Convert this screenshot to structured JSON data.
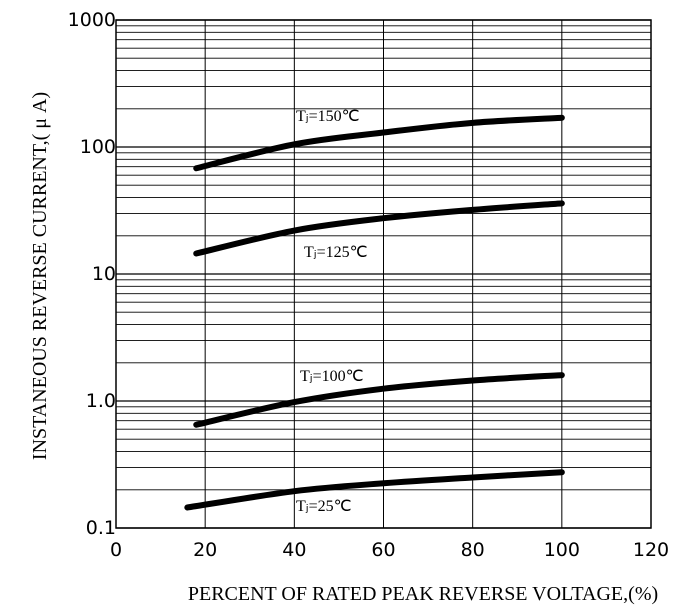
{
  "chart_data": {
    "type": "line",
    "xlabel": "PERCENT OF RATED PEAK REVERSE VOLTAGE,(%)",
    "ylabel": "INSTANEOUS REVERSE CURRENT,( μ A)",
    "xlim": [
      0,
      120
    ],
    "ylim": [
      0.1,
      1000
    ],
    "y_scale": "log",
    "grid": true,
    "x_ticks": [
      "0",
      "20",
      "40",
      "60",
      "80",
      "100",
      "120"
    ],
    "y_ticks": [
      "0.1",
      "1.0",
      "10",
      "100",
      "1000"
    ],
    "series": [
      {
        "name": "Tⱼ=150℃",
        "x": [
          18,
          40,
          60,
          80,
          100
        ],
        "y": [
          68,
          105,
          130,
          155,
          170
        ]
      },
      {
        "name": "Tⱼ=125℃",
        "x": [
          18,
          40,
          60,
          80,
          100
        ],
        "y": [
          14.5,
          22,
          27.5,
          32,
          36
        ]
      },
      {
        "name": "Tⱼ=100℃",
        "x": [
          18,
          40,
          60,
          80,
          100
        ],
        "y": [
          0.65,
          0.98,
          1.25,
          1.45,
          1.6
        ]
      },
      {
        "name": "Tⱼ=25℃",
        "x": [
          16,
          40,
          60,
          80,
          100
        ],
        "y": [
          0.145,
          0.195,
          0.225,
          0.25,
          0.275
        ]
      }
    ]
  }
}
